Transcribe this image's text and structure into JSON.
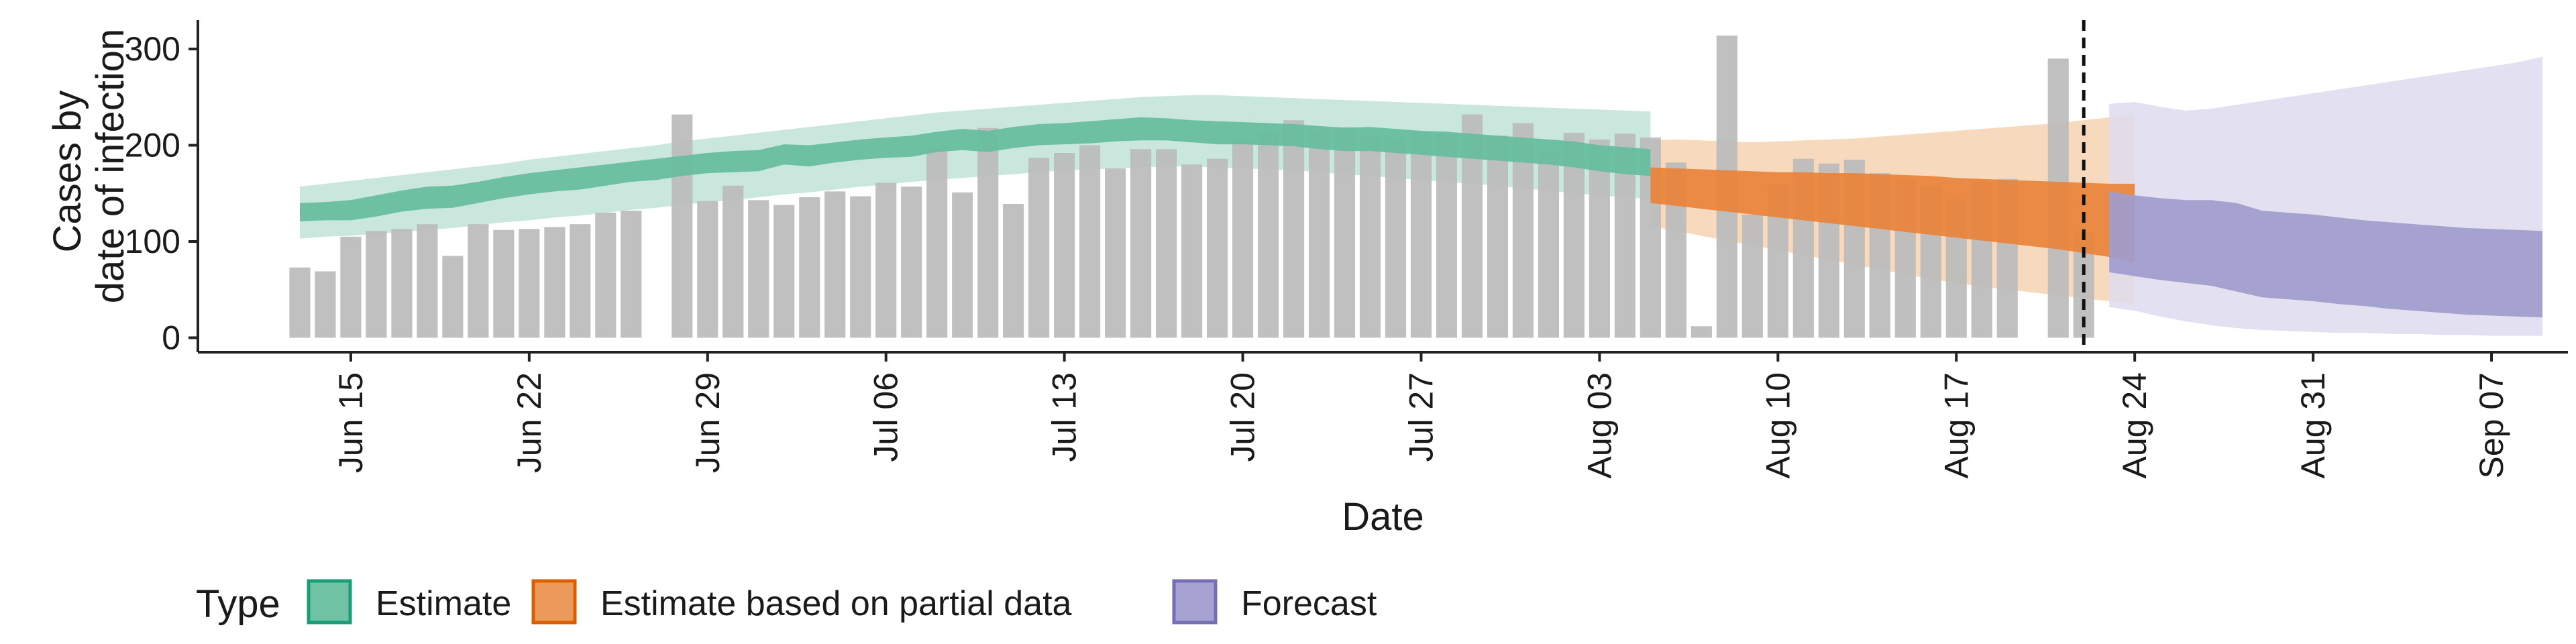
{
  "chart_data": {
    "type": "bar",
    "xlabel": "Date",
    "ylabel_lines": [
      "Cases by",
      "date of infection"
    ],
    "y_ticks": [
      0,
      100,
      200,
      300
    ],
    "ylim": [
      -15,
      330
    ],
    "xlim": [
      "2021-06-09",
      "2021-09-10"
    ],
    "x_ticks": [
      {
        "date": "2021-06-15",
        "label": "Jun 15"
      },
      {
        "date": "2021-06-22",
        "label": "Jun 22"
      },
      {
        "date": "2021-06-29",
        "label": "Jun 29"
      },
      {
        "date": "2021-07-06",
        "label": "Jul 06"
      },
      {
        "date": "2021-07-13",
        "label": "Jul 13"
      },
      {
        "date": "2021-07-20",
        "label": "Jul 20"
      },
      {
        "date": "2021-07-27",
        "label": "Jul 27"
      },
      {
        "date": "2021-08-03",
        "label": "Aug 03"
      },
      {
        "date": "2021-08-10",
        "label": "Aug 10"
      },
      {
        "date": "2021-08-17",
        "label": "Aug 17"
      },
      {
        "date": "2021-08-24",
        "label": "Aug 24"
      },
      {
        "date": "2021-08-31",
        "label": "Aug 31"
      },
      {
        "date": "2021-09-07",
        "label": "Sep 07"
      }
    ],
    "vline_date": "2021-08-22",
    "bars": {
      "start_date": "2021-06-13",
      "color": "#bdbdbd",
      "values": [
        73,
        69,
        105,
        111,
        113,
        118,
        85,
        118,
        112,
        113,
        115,
        118,
        130,
        132,
        0,
        232,
        142,
        158,
        143,
        138,
        146,
        152,
        147,
        161,
        157,
        197,
        151,
        218,
        139,
        187,
        192,
        200,
        176,
        196,
        196,
        180,
        186,
        206,
        214,
        226,
        216,
        219,
        210,
        208,
        214,
        212,
        232,
        210,
        223,
        193,
        213,
        206,
        212,
        208,
        182,
        12,
        314,
        128,
        160,
        186,
        181,
        185,
        171,
        165,
        158,
        144,
        162,
        165,
        0,
        290,
        110
      ]
    },
    "legend": {
      "title": "Type",
      "entries": [
        {
          "label": "Estimate",
          "fill": "#6fc2a4",
          "stroke": "#1b9e77"
        },
        {
          "label": "Estimate based on partial data",
          "fill": "#ec9a5c",
          "stroke": "#d95f02"
        },
        {
          "label": "Forecast",
          "fill": "#a6a2d1",
          "stroke": "#7570b3"
        }
      ]
    },
    "series": [
      {
        "type": "Estimate",
        "start_date": "2021-06-13",
        "dark_color": "#66bd9d",
        "light_color": "#bfe3d6",
        "outer_upper": [
          157,
          160,
          163,
          166,
          169,
          172,
          175,
          178,
          181,
          185,
          188,
          191,
          194,
          197,
          200,
          204,
          207,
          210,
          213,
          216,
          219,
          222,
          225,
          228,
          231,
          234,
          236,
          238,
          240,
          242,
          244,
          246,
          248,
          250,
          251,
          252,
          252,
          251,
          250,
          249,
          248,
          247,
          246,
          245,
          244,
          243,
          242,
          241,
          240,
          239,
          238,
          237,
          236,
          235
        ],
        "inner_upper": [
          140,
          141,
          143,
          148,
          153,
          157,
          158,
          162,
          167,
          171,
          174,
          177,
          180,
          183,
          186,
          189,
          192,
          194,
          195,
          201,
          200,
          203,
          206,
          208,
          210,
          214,
          217,
          215,
          219,
          222,
          223,
          225,
          227,
          229,
          228,
          226,
          225,
          224,
          223,
          222,
          220,
          218,
          219,
          217,
          215,
          214,
          212,
          210,
          208,
          206,
          204,
          200,
          198,
          196
        ],
        "inner_lower": [
          121,
          122,
          122,
          126,
          131,
          134,
          135,
          140,
          145,
          149,
          152,
          154,
          158,
          162,
          164,
          168,
          171,
          172,
          173,
          180,
          178,
          182,
          185,
          187,
          188,
          193,
          195,
          193,
          197,
          200,
          201,
          202,
          204,
          205,
          205,
          203,
          201,
          201,
          200,
          199,
          196,
          194,
          194,
          192,
          190,
          188,
          186,
          184,
          182,
          180,
          177,
          173,
          170,
          168
        ],
        "outer_lower": [
          103,
          105,
          106,
          108,
          110,
          112,
          114,
          117,
          120,
          122,
          125,
          127,
          130,
          133,
          135,
          138,
          141,
          143,
          146,
          149,
          151,
          154,
          157,
          159,
          162,
          164,
          166,
          168,
          170,
          172,
          174,
          175,
          176,
          177,
          178,
          178,
          177,
          176,
          175,
          174,
          172,
          170,
          168,
          166,
          164,
          162,
          160,
          158,
          155,
          153,
          150,
          148,
          146,
          144
        ]
      },
      {
        "type": "Estimate based on partial data",
        "start_date": "2021-08-05",
        "dark_color": "#e9833a",
        "light_color": "#f6d2b3",
        "outer_upper": [
          205,
          206,
          205,
          204,
          203,
          204,
          205,
          206,
          207,
          209,
          211,
          213,
          215,
          217,
          219,
          221,
          223,
          226,
          229,
          233
        ],
        "inner_upper": [
          177,
          176,
          175,
          174,
          173,
          172,
          172,
          171,
          171,
          170,
          169,
          168,
          166,
          165,
          164,
          163,
          162,
          161,
          160,
          160
        ],
        "inner_lower": [
          140,
          137,
          134,
          131,
          128,
          125,
          122,
          119,
          116,
          113,
          110,
          107,
          104,
          101,
          98,
          95,
          92,
          88,
          84,
          78
        ],
        "outer_lower": [
          116,
          111,
          106,
          101,
          96,
          91,
          86,
          81,
          76,
          71,
          66,
          61,
          57,
          53,
          50,
          47,
          44,
          41,
          38,
          35
        ]
      },
      {
        "type": "Forecast",
        "start_date": "2021-08-23",
        "dark_color": "#a09ccd",
        "light_color": "#dedcee",
        "outer_upper": [
          243,
          245,
          240,
          236,
          238,
          242,
          246,
          250,
          254,
          258,
          262,
          266,
          270,
          274,
          278,
          282,
          286,
          292
        ],
        "inner_upper": [
          152,
          148,
          145,
          143,
          143,
          140,
          132,
          130,
          128,
          125,
          122,
          120,
          118,
          116,
          114,
          113,
          112,
          111
        ],
        "inner_lower": [
          68,
          64,
          60,
          57,
          54,
          48,
          42,
          40,
          38,
          35,
          33,
          30,
          28,
          26,
          24,
          23,
          22,
          21
        ],
        "outer_lower": [
          32,
          28,
          22,
          17,
          13,
          10,
          8,
          7,
          6,
          5,
          5,
          4,
          4,
          3,
          3,
          2,
          2,
          2
        ]
      }
    ]
  }
}
